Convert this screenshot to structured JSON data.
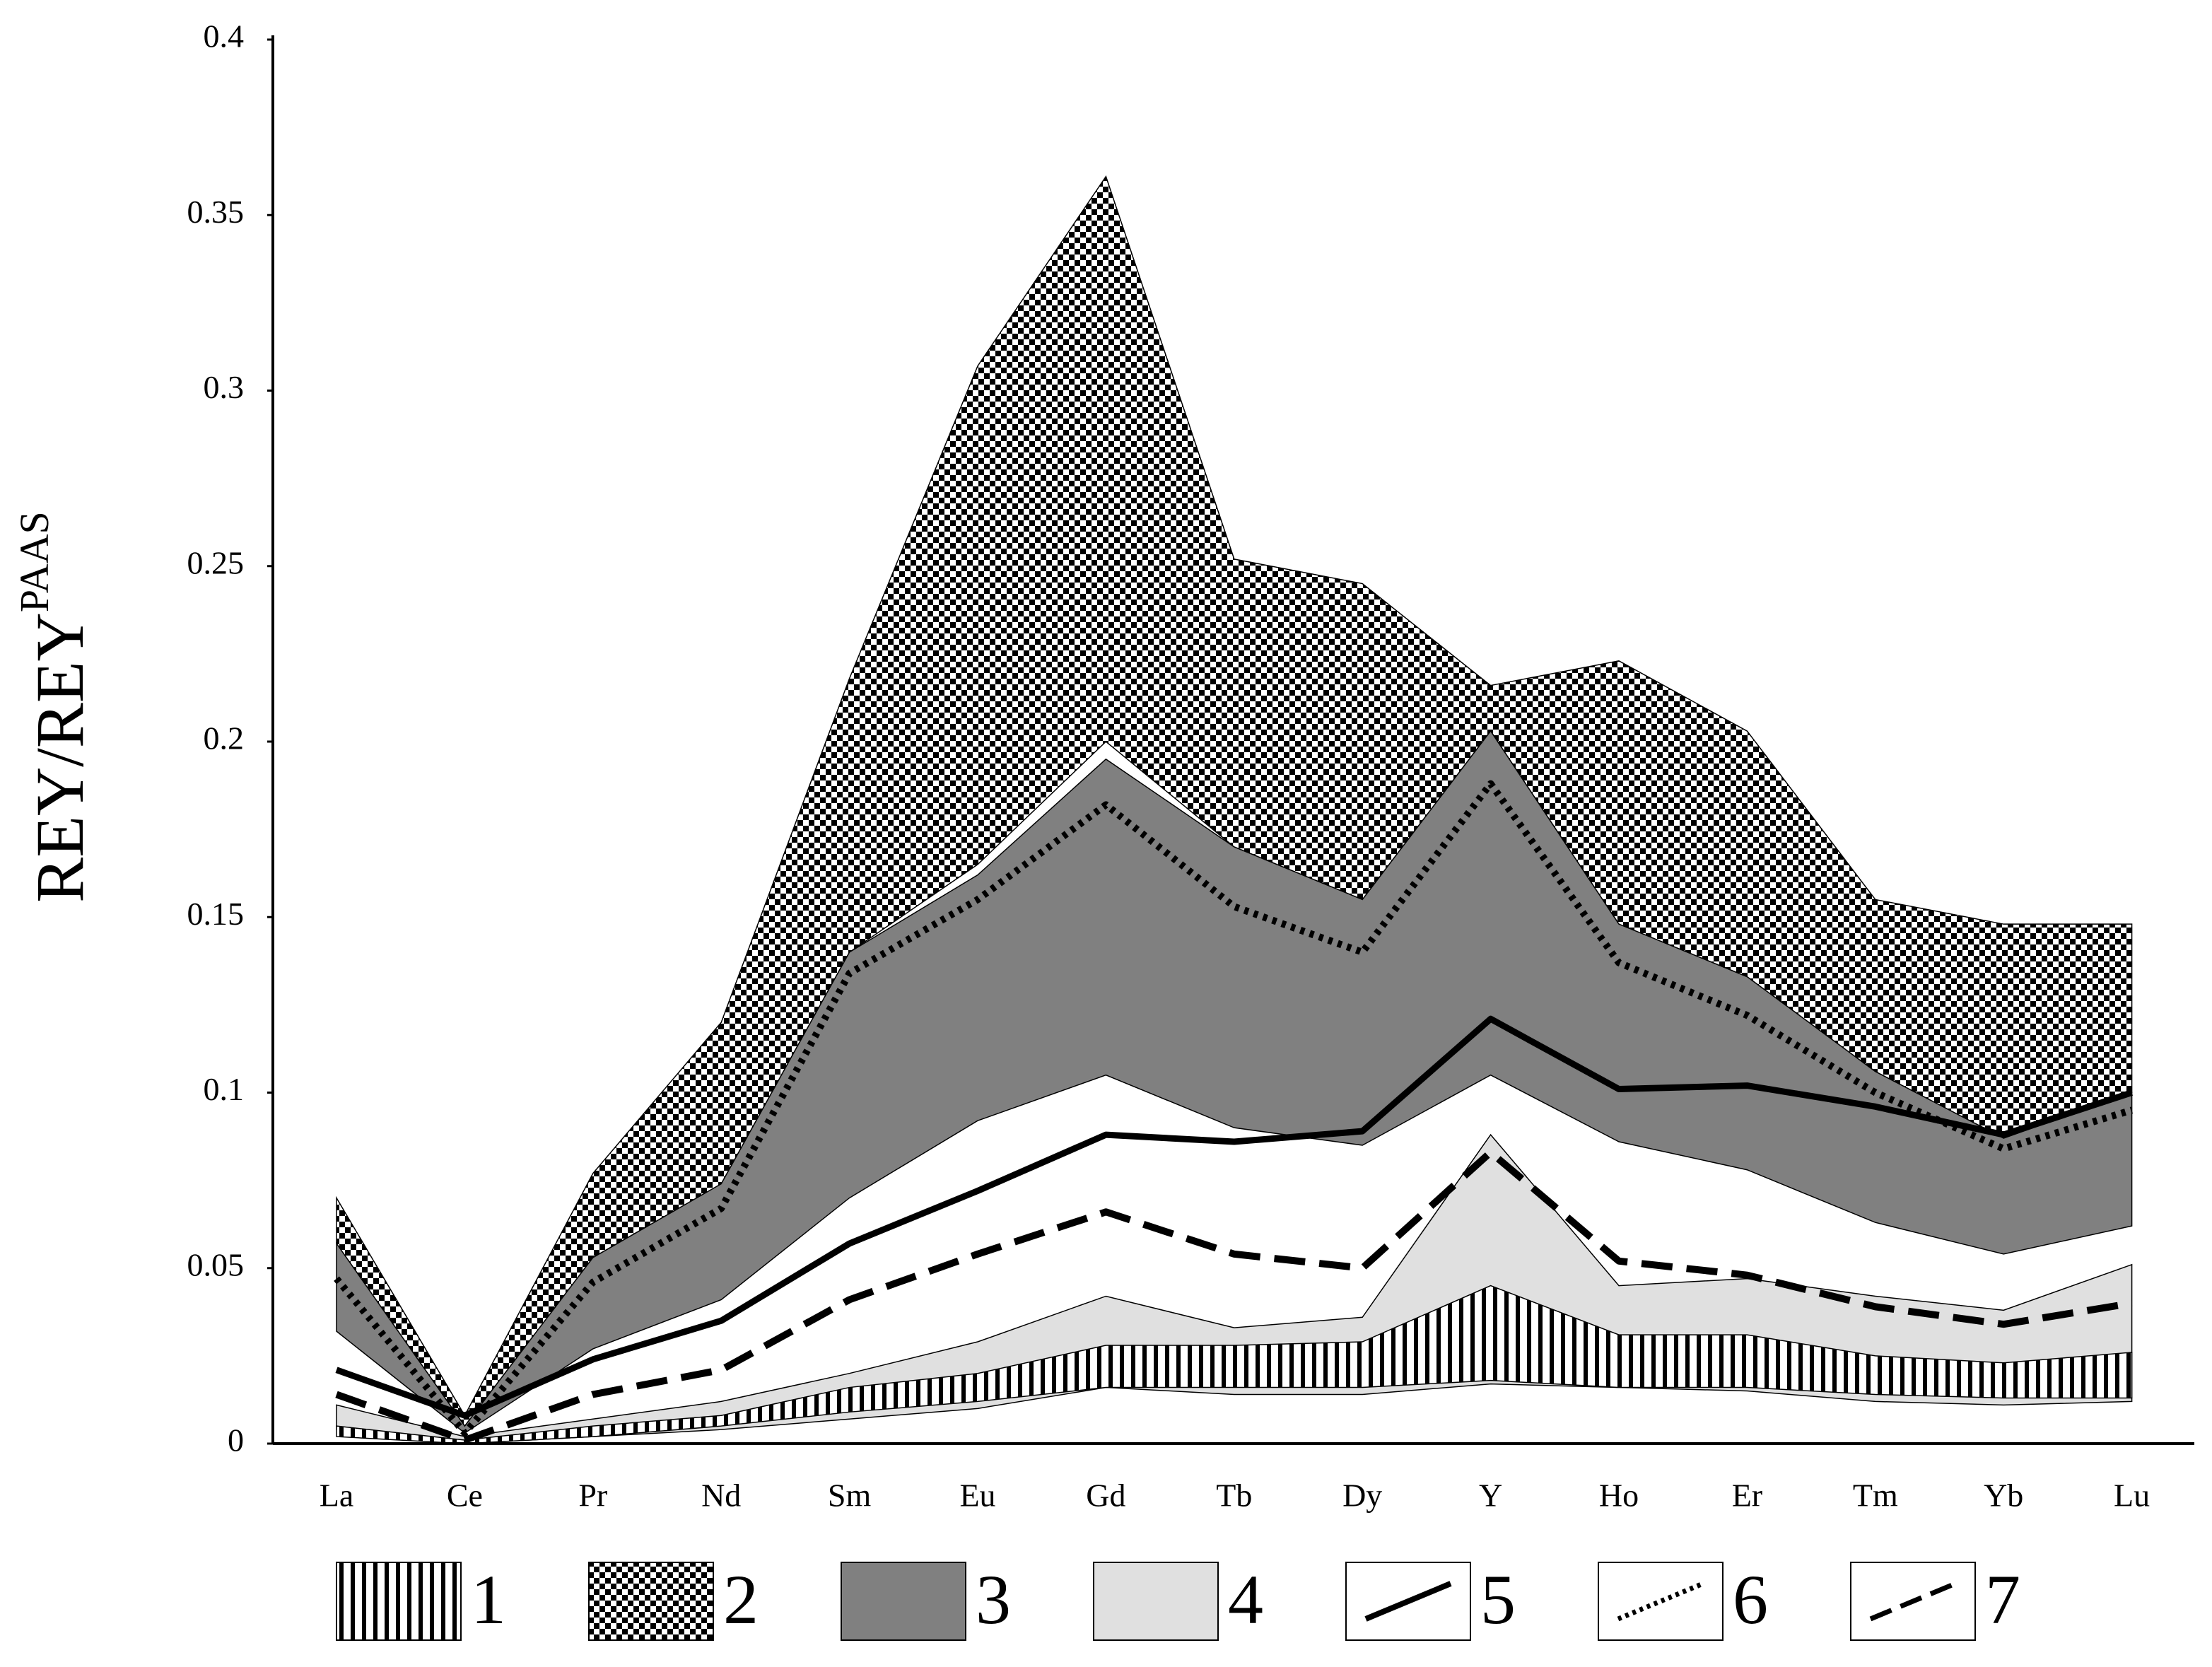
{
  "chart_data": {
    "type": "range-area",
    "y_label": "REY/REY",
    "y_label_superscript": "PAAS",
    "categories": [
      "La",
      "Ce",
      "Pr",
      "Nd",
      "Sm",
      "Eu",
      "Gd",
      "Tb",
      "Dy",
      "Y",
      "Ho",
      "Er",
      "Tm",
      "Yb",
      "Lu"
    ],
    "ylim": [
      0,
      0.4
    ],
    "yticks": [
      0,
      0.05,
      0.1,
      0.15,
      0.2,
      0.25,
      0.3,
      0.35,
      0.4
    ],
    "bands": [
      {
        "name": "2",
        "fill": "checker",
        "high": [
          0.07,
          0.008,
          0.077,
          0.12,
          0.218,
          0.307,
          0.361,
          0.252,
          0.245,
          0.216,
          0.223,
          0.203,
          0.155,
          0.148,
          0.148
        ],
        "low": [
          0.057,
          0.005,
          0.053,
          0.074,
          0.14,
          0.165,
          0.2,
          0.17,
          0.155,
          0.203,
          0.148,
          0.133,
          0.106,
          0.087,
          0.1
        ]
      },
      {
        "name": "3",
        "fill": "#808080",
        "high": [
          0.057,
          0.005,
          0.053,
          0.074,
          0.14,
          0.162,
          0.195,
          0.17,
          0.155,
          0.203,
          0.148,
          0.133,
          0.106,
          0.087,
          0.1
        ],
        "low": [
          0.032,
          0.003,
          0.027,
          0.041,
          0.07,
          0.092,
          0.105,
          0.09,
          0.085,
          0.105,
          0.086,
          0.078,
          0.063,
          0.054,
          0.062
        ]
      },
      {
        "name": "4",
        "fill": "#e0e0e0",
        "high": [
          0.011,
          0.002,
          0.007,
          0.012,
          0.02,
          0.029,
          0.042,
          0.033,
          0.036,
          0.088,
          0.045,
          0.047,
          0.042,
          0.038,
          0.051
        ],
        "low": [
          0.004,
          0,
          0.002,
          0.004,
          0.007,
          0.01,
          0.016,
          0.014,
          0.014,
          0.017,
          0.016,
          0.015,
          0.012,
          0.011,
          0.012
        ]
      },
      {
        "name": "1",
        "fill": "stripes",
        "high": [
          0.005,
          0.001,
          0.005,
          0.008,
          0.016,
          0.02,
          0.028,
          0.028,
          0.029,
          0.045,
          0.031,
          0.031,
          0.025,
          0.023,
          0.026
        ],
        "low": [
          0.002,
          0,
          0.002,
          0.005,
          0.009,
          0.012,
          0.016,
          0.016,
          0.016,
          0.018,
          0.016,
          0.016,
          0.014,
          0.013,
          0.013
        ]
      }
    ],
    "lines": [
      {
        "name": "5",
        "style": "solid",
        "values": [
          0.021,
          0.008,
          0.024,
          0.035,
          0.057,
          0.072,
          0.088,
          0.086,
          0.089,
          0.121,
          0.101,
          0.102,
          0.096,
          0.088,
          0.1
        ]
      },
      {
        "name": "6",
        "style": "dotted",
        "values": [
          0.047,
          0.003,
          0.046,
          0.067,
          0.134,
          0.155,
          0.182,
          0.153,
          0.14,
          0.188,
          0.137,
          0.122,
          0.1,
          0.084,
          0.095
        ]
      },
      {
        "name": "7",
        "style": "dashed",
        "values": [
          0.014,
          0.001,
          0.014,
          0.021,
          0.041,
          0.054,
          0.066,
          0.054,
          0.05,
          0.083,
          0.052,
          0.048,
          0.039,
          0.034,
          0.04
        ]
      }
    ],
    "legend_order": [
      "1",
      "2",
      "3",
      "4",
      "5",
      "6",
      "7"
    ]
  }
}
